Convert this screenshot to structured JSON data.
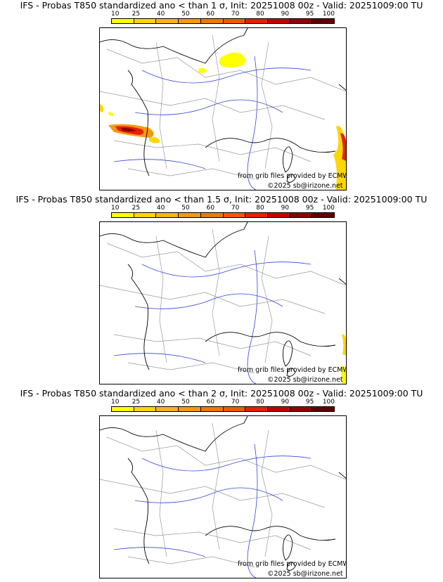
{
  "panels": [
    {
      "title": "IFS - Probas T850  standardized ano < than 1 σ, Init: 20251008 00z - Valid: 20251009:00 TU",
      "credit_source": "from grib files provided by ECMWF",
      "credit_copyright": "©2025 sb@irizone.net"
    },
    {
      "title": "IFS - Probas T850  standardized ano < than 1.5 σ, Init: 20251008 00z - Valid: 20251009:00 TU",
      "credit_source": "from grib files provided by ECMWF",
      "credit_copyright": "©2025 sb@irizone.net"
    },
    {
      "title": "IFS - Probas T850  standardized ano < than 2 σ, Init: 20251008 00z - Valid: 20251009:00 TU",
      "credit_source": "from grib files provided by ECMWF",
      "credit_copyright": "©2025 sb@irizone.net"
    }
  ],
  "colorbar": {
    "ticks": [
      "10",
      "25",
      "40",
      "50",
      "60",
      "70",
      "80",
      "90",
      "95",
      "100"
    ],
    "colors": [
      "#ffff00",
      "#ffd700",
      "#f9b31d",
      "#f59a0c",
      "#f07a00",
      "#f05a00",
      "#e62000",
      "#c00000",
      "#900000",
      "#600000"
    ]
  },
  "colors": {
    "rivers": "#3344dd",
    "borders": "#999999",
    "coast": "#000000"
  }
}
